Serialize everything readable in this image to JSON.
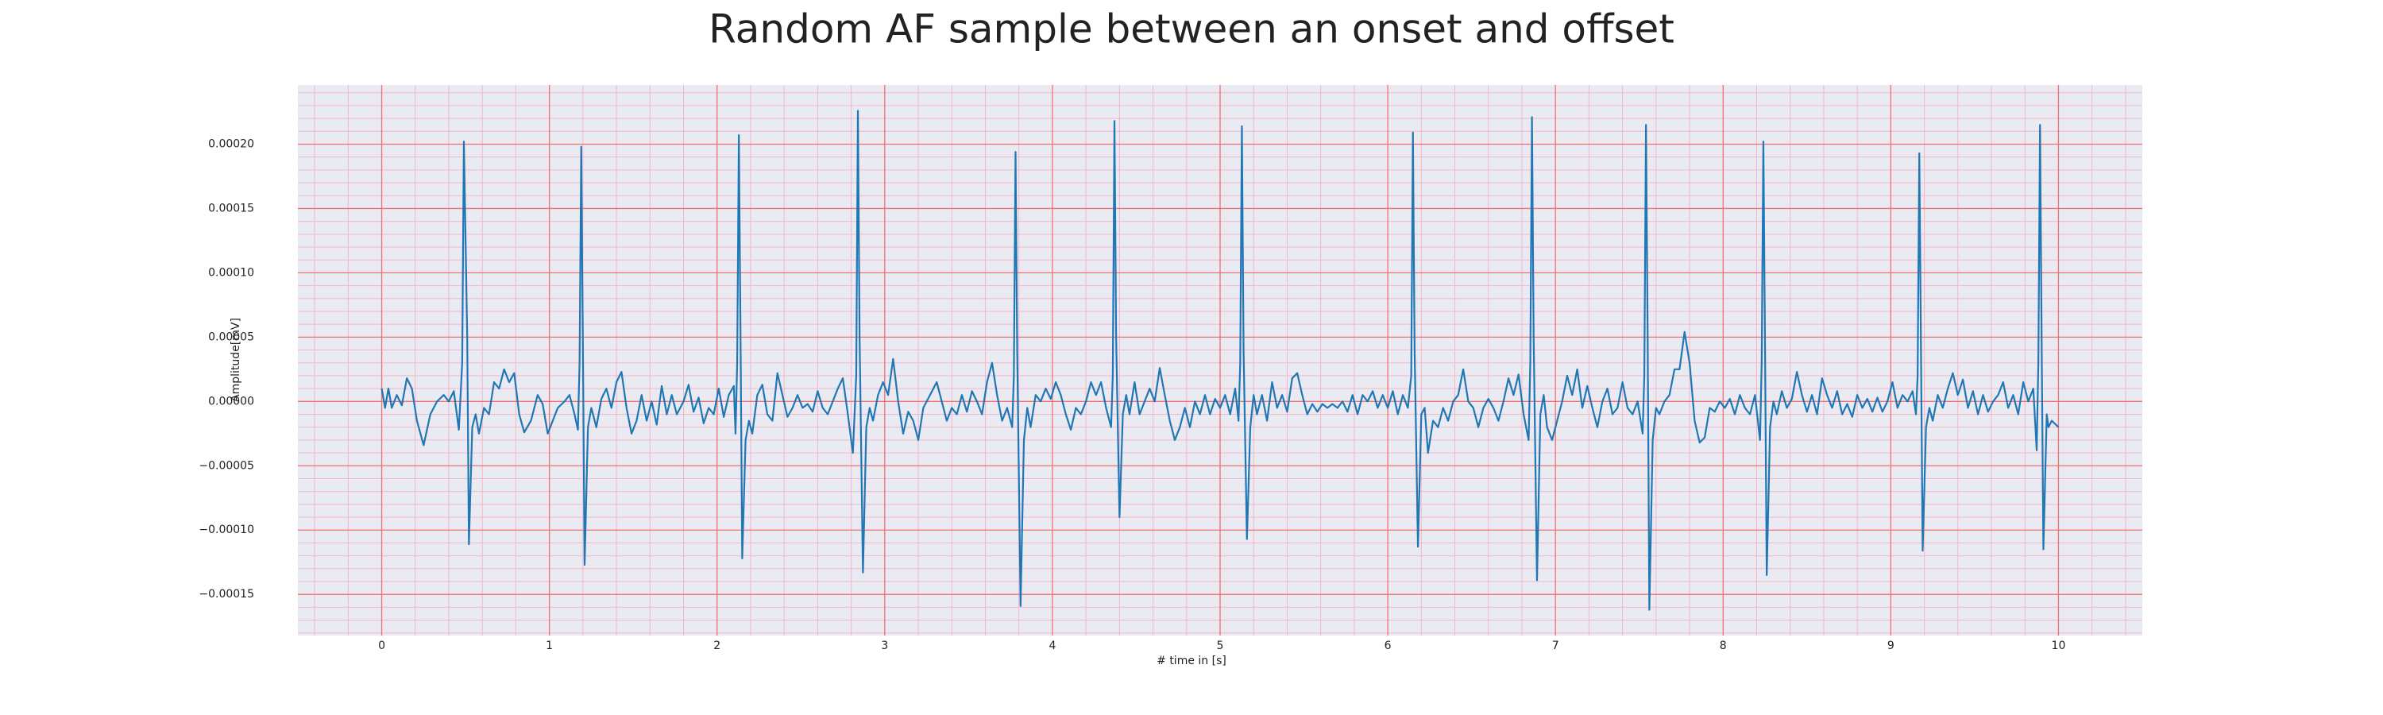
{
  "chart_data": {
    "type": "line",
    "title": "Random AF sample between an onset and offset",
    "xlabel": "# time in [s]",
    "ylabel": "Amplitude[mV]",
    "color": "#1f77b4",
    "grid": true,
    "minor_grid": true,
    "xlim": [
      -0.5,
      10.5
    ],
    "ylim": [
      -0.000182,
      0.000246
    ],
    "xticks": [
      0,
      1,
      2,
      3,
      4,
      5,
      6,
      7,
      8,
      9,
      10
    ],
    "yticks": [
      {
        "value": -0.00015,
        "label": "−0.00015"
      },
      {
        "value": -0.0001,
        "label": "−0.00010"
      },
      {
        "value": -5e-05,
        "label": "−0.00005"
      },
      {
        "value": 0,
        "label": "0.00000"
      },
      {
        "value": 5e-05,
        "label": "0.00005"
      },
      {
        "value": 0.0001,
        "label": "0.00010"
      },
      {
        "value": 0.00015,
        "label": "0.00015"
      },
      {
        "value": 0.0002,
        "label": "0.00020"
      }
    ],
    "x": [
      0,
      0.02,
      0.04,
      0.06,
      0.09,
      0.12,
      0.15,
      0.18,
      0.21,
      0.25,
      0.29,
      0.33,
      0.37,
      0.4,
      0.43,
      0.46,
      0.48,
      0.49,
      0.51,
      0.52,
      0.54,
      0.56,
      0.58,
      0.61,
      0.64,
      0.67,
      0.7,
      0.73,
      0.76,
      0.79,
      0.82,
      0.85,
      0.89,
      0.93,
      0.96,
      0.99,
      1.02,
      1.05,
      1.09,
      1.12,
      1.15,
      1.17,
      1.18,
      1.19,
      1.2,
      1.21,
      1.23,
      1.25,
      1.28,
      1.31,
      1.34,
      1.37,
      1.4,
      1.43,
      1.46,
      1.49,
      1.52,
      1.55,
      1.58,
      1.61,
      1.64,
      1.67,
      1.7,
      1.73,
      1.76,
      1.8,
      1.83,
      1.86,
      1.89,
      1.92,
      1.95,
      1.98,
      2.01,
      2.04,
      2.07,
      2.1,
      2.11,
      2.12,
      2.13,
      2.14,
      2.15,
      2.17,
      2.19,
      2.21,
      2.24,
      2.27,
      2.3,
      2.33,
      2.36,
      2.39,
      2.42,
      2.45,
      2.48,
      2.51,
      2.54,
      2.57,
      2.6,
      2.63,
      2.66,
      2.69,
      2.72,
      2.75,
      2.78,
      2.81,
      2.83,
      2.84,
      2.85,
      2.87,
      2.89,
      2.91,
      2.93,
      2.96,
      2.99,
      3.02,
      3.05,
      3.08,
      3.11,
      3.14,
      3.17,
      3.2,
      3.23,
      3.27,
      3.31,
      3.34,
      3.37,
      3.4,
      3.43,
      3.46,
      3.49,
      3.52,
      3.55,
      3.58,
      3.61,
      3.64,
      3.67,
      3.7,
      3.73,
      3.76,
      3.77,
      3.78,
      3.79,
      3.81,
      3.83,
      3.85,
      3.87,
      3.9,
      3.93,
      3.96,
      3.99,
      4.02,
      4.05,
      4.08,
      4.11,
      4.14,
      4.17,
      4.2,
      4.23,
      4.26,
      4.29,
      4.32,
      4.35,
      4.36,
      4.37,
      4.38,
      4.4,
      4.42,
      4.44,
      4.46,
      4.49,
      4.52,
      4.55,
      4.58,
      4.61,
      4.64,
      4.67,
      4.7,
      4.73,
      4.76,
      4.79,
      4.82,
      4.85,
      4.88,
      4.91,
      4.94,
      4.97,
      5.0,
      5.03,
      5.06,
      5.09,
      5.11,
      5.12,
      5.13,
      5.14,
      5.16,
      5.18,
      5.2,
      5.22,
      5.25,
      5.28,
      5.31,
      5.34,
      5.37,
      5.4,
      5.43,
      5.46,
      5.49,
      5.52,
      5.55,
      5.58,
      5.61,
      5.64,
      5.67,
      5.7,
      5.73,
      5.76,
      5.79,
      5.82,
      5.85,
      5.88,
      5.91,
      5.94,
      5.97,
      6.0,
      6.03,
      6.06,
      6.09,
      6.12,
      6.14,
      6.15,
      6.16,
      6.18,
      6.2,
      6.22,
      6.24,
      6.27,
      6.3,
      6.33,
      6.36,
      6.39,
      6.42,
      6.45,
      6.48,
      6.51,
      6.54,
      6.57,
      6.6,
      6.63,
      6.66,
      6.69,
      6.72,
      6.75,
      6.78,
      6.81,
      6.84,
      6.85,
      6.86,
      6.87,
      6.89,
      6.91,
      6.93,
      6.95,
      6.98,
      7.01,
      7.04,
      7.07,
      7.1,
      7.13,
      7.16,
      7.19,
      7.22,
      7.25,
      7.28,
      7.31,
      7.34,
      7.37,
      7.4,
      7.43,
      7.46,
      7.49,
      7.52,
      7.53,
      7.54,
      7.55,
      7.56,
      7.58,
      7.6,
      7.62,
      7.65,
      7.68,
      7.71,
      7.74,
      7.77,
      7.8,
      7.83,
      7.86,
      7.89,
      7.92,
      7.95,
      7.98,
      8.01,
      8.04,
      8.07,
      8.1,
      8.13,
      8.16,
      8.19,
      8.22,
      8.23,
      8.24,
      8.25,
      8.26,
      8.28,
      8.3,
      8.32,
      8.35,
      8.38,
      8.41,
      8.44,
      8.47,
      8.5,
      8.53,
      8.56,
      8.59,
      8.62,
      8.65,
      8.68,
      8.71,
      8.74,
      8.77,
      8.8,
      8.83,
      8.86,
      8.89,
      8.92,
      8.95,
      8.98,
      9.01,
      9.04,
      9.07,
      9.1,
      9.13,
      9.15,
      9.16,
      9.17,
      9.18,
      9.19,
      9.21,
      9.23,
      9.25,
      9.28,
      9.31,
      9.34,
      9.37,
      9.4,
      9.43,
      9.46,
      9.49,
      9.52,
      9.55,
      9.58,
      9.61,
      9.64,
      9.67,
      9.7,
      9.73,
      9.76,
      9.79,
      9.82,
      9.85,
      9.87,
      9.88,
      9.89,
      9.9,
      9.91,
      9.93,
      9.94,
      9.96,
      10.0
    ],
    "values": [
      1e-05,
      -5e-06,
      1e-05,
      -5e-06,
      5e-06,
      -3e-06,
      1.8e-05,
      1e-05,
      -1.5e-05,
      -3.4e-05,
      -1e-05,
      0.0,
      5e-06,
      0.0,
      8e-06,
      -2.2e-05,
      3e-05,
      0.000202,
      5e-05,
      -0.000111,
      -2e-05,
      -1e-05,
      -2.5e-05,
      -5e-06,
      -1e-05,
      1.5e-05,
      1e-05,
      2.5e-05,
      1.5e-05,
      2.2e-05,
      -1e-05,
      -2.4e-05,
      -1.5e-05,
      5e-06,
      -2e-06,
      -2.5e-05,
      -1.5e-05,
      -5e-06,
      0.0,
      5e-06,
      -1e-05,
      -2.2e-05,
      3e-05,
      0.000198,
      4e-05,
      -0.000127,
      -2e-05,
      -5e-06,
      -2e-05,
      2e-06,
      1e-05,
      -5e-06,
      1.5e-05,
      2.3e-05,
      -5e-06,
      -2.5e-05,
      -1.5e-05,
      5e-06,
      -1.5e-05,
      0.0,
      -1.8e-05,
      1.2e-05,
      -1e-05,
      5e-06,
      -1e-05,
      0.0,
      1.3e-05,
      -8e-06,
      3e-06,
      -1.7e-05,
      -5e-06,
      -1e-05,
      1e-05,
      -1.2e-05,
      5e-06,
      1.2e-05,
      -2.5e-05,
      3e-05,
      0.000207,
      5e-05,
      -0.000122,
      -3e-05,
      -1.5e-05,
      -2.5e-05,
      5e-06,
      1.3e-05,
      -1e-05,
      -1.5e-05,
      2.2e-05,
      5e-06,
      -1.2e-05,
      -5e-06,
      5e-06,
      -5e-06,
      -2e-06,
      -8e-06,
      8e-06,
      -5e-06,
      -1e-05,
      0.0,
      1e-05,
      1.8e-05,
      -1e-05,
      -4e-05,
      2e-05,
      0.000226,
      5e-05,
      -0.000133,
      -2e-05,
      -5e-06,
      -1.5e-05,
      5e-06,
      1.5e-05,
      5e-06,
      3.3e-05,
      0.0,
      -2.5e-05,
      -8e-06,
      -1.5e-05,
      -3e-05,
      -5e-06,
      5e-06,
      1.5e-05,
      0.0,
      -1.5e-05,
      -5e-06,
      -1e-05,
      5e-06,
      -8e-06,
      8e-06,
      0.0,
      -1e-05,
      1.5e-05,
      3e-05,
      5e-06,
      -1.5e-05,
      -5e-06,
      -2e-05,
      2e-05,
      0.000194,
      4e-05,
      -0.000159,
      -3e-05,
      -5e-06,
      -2e-05,
      5e-06,
      0.0,
      1e-05,
      2e-06,
      1.5e-05,
      5e-06,
      -1e-05,
      -2.2e-05,
      -5e-06,
      -1e-05,
      0.0,
      1.5e-05,
      5e-06,
      1.5e-05,
      -5e-06,
      -2e-05,
      2e-05,
      0.000218,
      5e-05,
      -9e-05,
      -1e-05,
      5e-06,
      -1e-05,
      1.5e-05,
      -1e-05,
      0.0,
      1e-05,
      0.0,
      2.6e-05,
      5e-06,
      -1.5e-05,
      -3e-05,
      -2e-05,
      -5e-06,
      -2e-05,
      0.0,
      -1e-05,
      5e-06,
      -1e-05,
      2e-06,
      -5e-06,
      5e-06,
      -1e-05,
      1e-05,
      -1.5e-05,
      3e-05,
      0.000214,
      4e-05,
      -0.000107,
      -2e-05,
      5e-06,
      -1e-05,
      5e-06,
      -1.5e-05,
      1.5e-05,
      -5e-06,
      5e-06,
      -8e-06,
      1.8e-05,
      2.2e-05,
      5e-06,
      -1e-05,
      -2e-06,
      -8e-06,
      -2e-06,
      -5e-06,
      -2e-06,
      -5e-06,
      0.0,
      -8e-06,
      5e-06,
      -1e-05,
      5e-06,
      0.0,
      8e-06,
      -5e-06,
      5e-06,
      -5e-06,
      8e-06,
      -1e-05,
      5e-06,
      -5e-06,
      2e-05,
      0.000209,
      4e-05,
      -0.000113,
      -1e-05,
      -5e-06,
      -4e-05,
      -1.5e-05,
      -2e-05,
      -5e-06,
      -1.5e-05,
      0.0,
      5e-06,
      2.5e-05,
      0.0,
      -5e-06,
      -2e-05,
      -5e-06,
      2e-06,
      -5e-06,
      -1.5e-05,
      0.0,
      1.8e-05,
      5e-06,
      2.1e-05,
      -1e-05,
      -3e-05,
      3e-05,
      0.000221,
      5e-05,
      -0.000139,
      -1e-05,
      5e-06,
      -2e-05,
      -3e-05,
      -1.5e-05,
      0.0,
      2e-05,
      5e-06,
      2.5e-05,
      -5e-06,
      1.2e-05,
      -5e-06,
      -2e-05,
      0.0,
      1e-05,
      -1e-05,
      -5e-06,
      1.5e-05,
      -5e-06,
      -1e-05,
      0.0,
      -2.5e-05,
      2e-05,
      0.000215,
      5e-05,
      -0.000162,
      -3e-05,
      -5e-06,
      -1e-05,
      0.0,
      5e-06,
      2.5e-05,
      2.5e-05,
      5.4e-05,
      3e-05,
      -1.5e-05,
      -3.2e-05,
      -2.8e-05,
      -5e-06,
      -8e-06,
      0.0,
      -5e-06,
      2e-06,
      -1e-05,
      5e-06,
      -5e-06,
      -1e-05,
      5e-06,
      -3e-05,
      3e-05,
      0.000202,
      4e-05,
      -0.000135,
      -2e-05,
      0.0,
      -1e-05,
      8e-06,
      -5e-06,
      2e-06,
      2.3e-05,
      5e-06,
      -8e-06,
      5e-06,
      -1e-05,
      1.8e-05,
      5e-06,
      -5e-06,
      8e-06,
      -1e-05,
      -2e-06,
      -1.2e-05,
      5e-06,
      -5e-06,
      2e-06,
      -8e-06,
      3e-06,
      -8e-06,
      0.0,
      1.5e-05,
      -5e-06,
      5e-06,
      0.0,
      8e-06,
      -1e-05,
      2e-05,
      0.000193,
      4e-05,
      -0.000116,
      -2e-05,
      -5e-06,
      -1.5e-05,
      5e-06,
      -5e-06,
      1e-05,
      2.2e-05,
      5e-06,
      1.7e-05,
      -5e-06,
      8e-06,
      -1e-05,
      5e-06,
      -8e-06,
      0.0,
      5e-06,
      1.5e-05,
      -5e-06,
      5e-06,
      -1e-05,
      1.5e-05,
      0.0,
      1e-05,
      -3.8e-05,
      3e-05,
      0.000215,
      4e-05,
      -0.000115,
      -1e-05,
      -2e-05,
      -1.5e-05,
      -2e-05
    ]
  }
}
